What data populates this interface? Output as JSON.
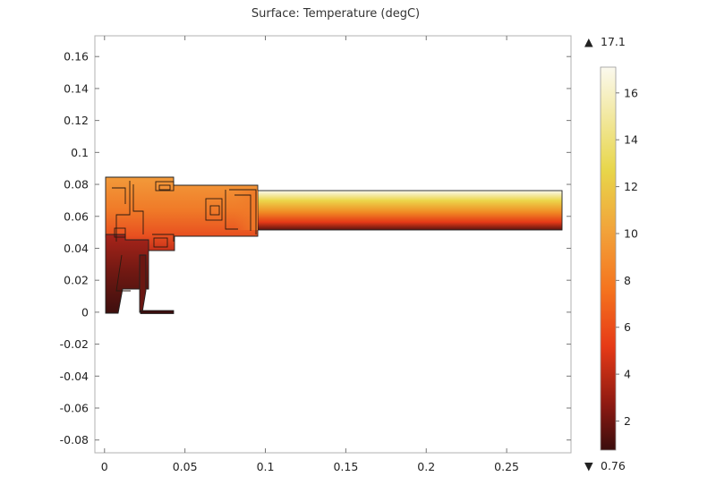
{
  "chart_data": {
    "type": "heatmap",
    "title": "Surface: Temperature (degC)",
    "xlabel": "",
    "ylabel": "",
    "xlim": [
      -0.006,
      0.29
    ],
    "ylim": [
      -0.088,
      0.173
    ],
    "xticks": [
      "0",
      "0.05",
      "0.1",
      "0.15",
      "0.2",
      "0.25"
    ],
    "xtick_values": [
      0,
      0.05,
      0.1,
      0.15,
      0.2,
      0.25
    ],
    "yticks": [
      "0.16",
      "0.14",
      "0.12",
      "0.1",
      "0.08",
      "0.06",
      "0.04",
      "0.02",
      "0",
      "-0.02",
      "-0.04",
      "-0.06",
      "-0.08"
    ],
    "ytick_values": [
      0.16,
      0.14,
      0.12,
      0.1,
      0.08,
      0.06,
      0.04,
      0.02,
      0,
      -0.02,
      -0.04,
      -0.06,
      -0.08
    ],
    "grid": false,
    "colorbar": {
      "max_label": "17.1",
      "min_label": "0.76",
      "max": 17.1,
      "min": 0.76,
      "ticks": [
        "16",
        "14",
        "12",
        "10",
        "8",
        "6",
        "4",
        "2"
      ],
      "tick_values": [
        16,
        14,
        12,
        10,
        8,
        6,
        4,
        2
      ],
      "colormap": "heat",
      "max_marker": "▲",
      "min_marker": "▼"
    },
    "regions": [
      {
        "name": "outlet pipe",
        "x": [
          0.095,
          0.285
        ],
        "y": [
          0.052,
          0.077
        ],
        "temperature_range": [
          1.5,
          16.5
        ]
      },
      {
        "name": "main housing",
        "x": [
          0,
          0.095
        ],
        "y": [
          0.045,
          0.085
        ],
        "temperature_range": [
          3,
          9
        ]
      },
      {
        "name": "left lower body",
        "x": [
          0,
          0.028
        ],
        "y": [
          0,
          0.05
        ],
        "temperature_range": [
          0.8,
          4
        ]
      },
      {
        "name": "foot",
        "x": [
          0.022,
          0.043
        ],
        "y": [
          0,
          0.002
        ],
        "temperature_range": [
          0.8,
          1.5
        ]
      }
    ]
  },
  "colors": {
    "heat_stops": [
      "#3a0d0d",
      "#8e1a12",
      "#e63a17",
      "#f5741e",
      "#f2a23a",
      "#e8d64a",
      "#fbf9ee"
    ]
  }
}
